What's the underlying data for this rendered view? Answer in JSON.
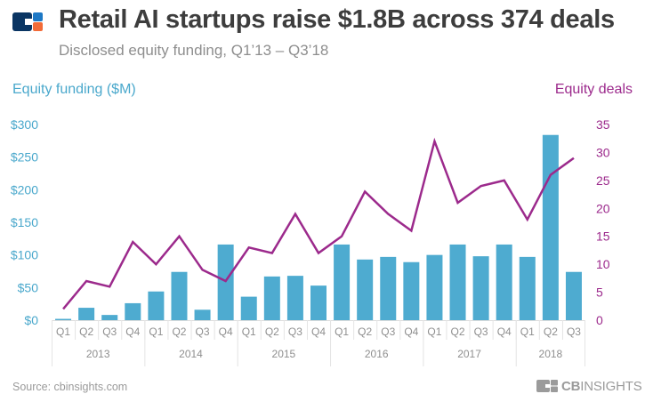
{
  "header": {
    "title": "Retail AI startups raise $1.8B across 374 deals",
    "subtitle": "Disclosed equity funding, Q1’13 – Q3’18",
    "logo_icon": "cb-insights-logo-icon"
  },
  "footer": {
    "source": "Source: cbinsights.com",
    "brand_bold": "CB",
    "brand_light": "INSIGHTS"
  },
  "colors": {
    "bars": "#4eabd0",
    "line": "#9c2a8c",
    "left_axis": "#4aa8cc",
    "right_axis": "#9c2a8c",
    "logo_navy": "#0a3563",
    "logo_blue": "#1d78c5",
    "logo_orange": "#f26b38"
  },
  "chart_data": {
    "type": "bar",
    "title": "Retail AI startups raise $1.8B across 374 deals",
    "subtitle": "Disclosed equity funding, Q1’13 – Q3’18",
    "xlabel": "",
    "ylabel": "Equity funding ($M)",
    "ylabel_right": "Equity deals",
    "ylim": [
      0,
      300
    ],
    "ylim_right": [
      0,
      35
    ],
    "yticks": [
      "$0",
      "$50",
      "$100",
      "$150",
      "$200",
      "$250",
      "$300"
    ],
    "yticks_right": [
      "0",
      "5",
      "10",
      "15",
      "20",
      "25",
      "30",
      "35"
    ],
    "grid": false,
    "legend": "axis titles (top-left and top-right)",
    "categories": [
      "Q1",
      "Q2",
      "Q3",
      "Q4",
      "Q1",
      "Q2",
      "Q3",
      "Q4",
      "Q1",
      "Q2",
      "Q3",
      "Q4",
      "Q1",
      "Q2",
      "Q3",
      "Q4",
      "Q1",
      "Q2",
      "Q3",
      "Q4",
      "Q1",
      "Q2",
      "Q3"
    ],
    "year_groups": [
      {
        "label": "2013",
        "count": 4
      },
      {
        "label": "2014",
        "count": 4
      },
      {
        "label": "2015",
        "count": 4
      },
      {
        "label": "2016",
        "count": 4
      },
      {
        "label": "2017",
        "count": 4
      },
      {
        "label": "2018",
        "count": 3
      }
    ],
    "series": [
      {
        "name": "Equity funding ($M)",
        "type": "bar",
        "axis": "left",
        "values": [
          2,
          19,
          8,
          26,
          44,
          74,
          16,
          116,
          36,
          67,
          68,
          53,
          116,
          93,
          97,
          89,
          100,
          116,
          98,
          116,
          97,
          284,
          74
        ]
      },
      {
        "name": "Equity deals",
        "type": "line",
        "axis": "right",
        "values": [
          2,
          7,
          6,
          14,
          10,
          15,
          9,
          7,
          13,
          12,
          19,
          12,
          15,
          23,
          19,
          16,
          32,
          21,
          24,
          25,
          18,
          26,
          29
        ]
      }
    ]
  }
}
